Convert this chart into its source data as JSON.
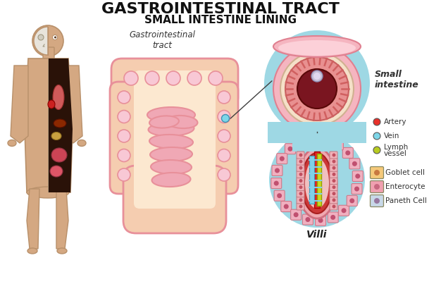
{
  "title1": "GASTROINTESTINAL TRACT",
  "title2": "SMALL INTESTINE LINING",
  "label_gi": "Gastrointestinal\ntract",
  "label_small": "Small\nintestine",
  "label_villi": "Villi",
  "legend_items": [
    {
      "label": "Artery",
      "color": "#e8302a",
      "shape": "circle"
    },
    {
      "label": "Vein",
      "color": "#7dd6e8",
      "shape": "circle"
    },
    {
      "label": "Lymph\nvessel",
      "color": "#b8cc20",
      "shape": "circle"
    },
    {
      "label": "Goblet cell",
      "color": "#f5c97a",
      "shape": "square",
      "inner": "#c87840"
    },
    {
      "label": "Enterocyte",
      "color": "#f0a0b0",
      "shape": "square",
      "inner": "#c86880"
    },
    {
      "label": "Paneth Cell",
      "color": "#c8d8e8",
      "shape": "square",
      "inner": "#9878a0"
    }
  ],
  "bg_color": "#ffffff",
  "cyan_bg": "#9ed8e4",
  "title_color": "#111111"
}
